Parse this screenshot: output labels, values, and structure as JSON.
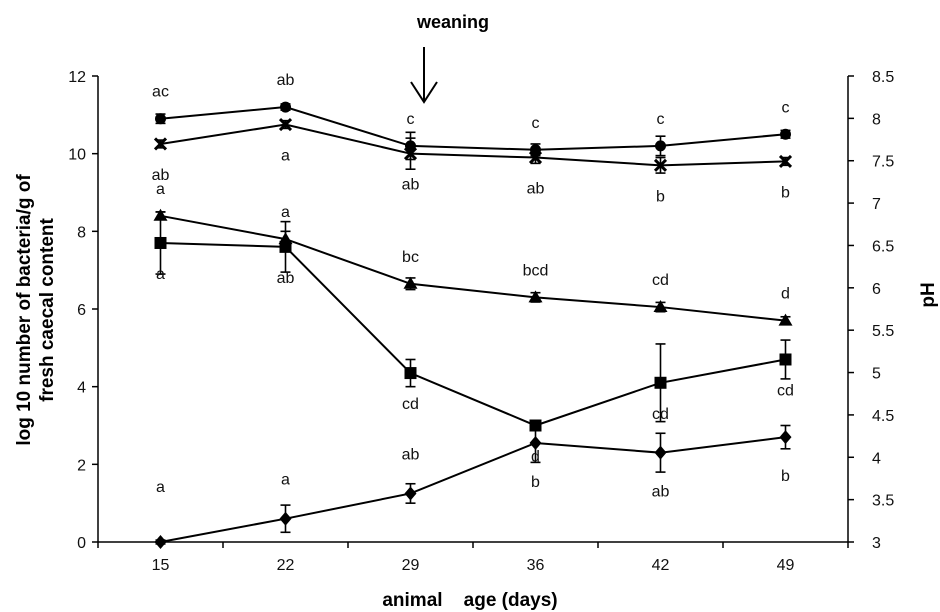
{
  "chart_data": {
    "type": "line",
    "x_categories": [
      "15",
      "22",
      "29",
      "36",
      "42",
      "49"
    ],
    "xlabel": "animal    age (days)",
    "ylabel_lines": [
      "log 10 number of bacteria/g of",
      "fresh caecal content"
    ],
    "y2label": "pH",
    "ylim": [
      0,
      12
    ],
    "y_ticks": [
      "0",
      "2",
      "4",
      "6",
      "8",
      "10",
      "12"
    ],
    "y2lim": [
      3,
      8.5
    ],
    "y2_ticks": [
      "3",
      "3.5",
      "4",
      "4.5",
      "5",
      "5.5",
      "6",
      "6.5",
      "7",
      "7.5",
      "8",
      "8.5"
    ],
    "grid": false,
    "event": {
      "label": "weaning",
      "x": "29"
    },
    "series": [
      {
        "marker": "circle",
        "axis": "left",
        "values": [
          10.9,
          11.2,
          10.2,
          10.1,
          10.2,
          10.5
        ],
        "errors": [
          0.12,
          0.08,
          0.35,
          0.15,
          0.25,
          0.1
        ],
        "labels": [
          "ac",
          "ab",
          "c",
          "c",
          "c",
          "c"
        ],
        "label_side": "above"
      },
      {
        "marker": "x",
        "axis": "left",
        "values": [
          10.25,
          10.75,
          10.0,
          9.9,
          9.7,
          9.8
        ],
        "errors": [
          0.1,
          0.1,
          0.4,
          0.15,
          0.2,
          0.1
        ],
        "labels": [
          "ab",
          "a",
          "ab",
          "ab",
          "b",
          "b"
        ],
        "label_side": "below"
      },
      {
        "marker": "triangle",
        "axis": "left",
        "values": [
          8.4,
          7.8,
          6.65,
          6.3,
          6.05,
          5.7
        ],
        "errors": [
          0.1,
          0.2,
          0.15,
          0.12,
          0.12,
          0.1
        ],
        "labels": [
          "a",
          "a",
          "bc",
          "bcd",
          "cd",
          "d"
        ],
        "label_side": "above"
      },
      {
        "marker": "square",
        "axis": "left",
        "values": [
          7.7,
          7.6,
          4.35,
          3.0,
          4.1,
          4.7
        ],
        "errors": [
          0.8,
          0.65,
          0.35,
          0.1,
          1.0,
          0.5
        ],
        "labels": [
          "a",
          "ab",
          "cd",
          "d",
          "cd",
          "cd"
        ],
        "label_side": "below"
      },
      {
        "marker": "diamond",
        "axis": "left",
        "values": [
          0.0,
          0.6,
          1.25,
          2.55,
          2.3,
          2.7
        ],
        "errors": [
          0.05,
          0.35,
          0.25,
          0.5,
          0.5,
          0.3
        ],
        "labels": [
          "a",
          "a",
          "ab",
          "b",
          "ab",
          "b"
        ],
        "label_side": "mixed"
      }
    ]
  }
}
